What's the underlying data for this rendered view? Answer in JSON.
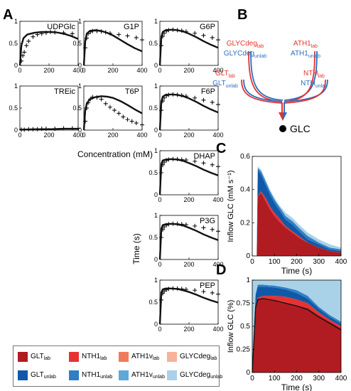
{
  "panel_letters": {
    "a": "A",
    "b": "B",
    "c": "C",
    "d": "D"
  },
  "common": {
    "xlabel": "Concentration (mM)",
    "ylabel": "Time (s)"
  },
  "colors": {
    "glt_lab": "#b01c22",
    "nth1_lab": "#e8322f",
    "ath1v_lab": "#f07b5b",
    "glycdeg_lab": "#f5b39a",
    "glt_unlab": "#1059a8",
    "nth1_unlab": "#2f7fc5",
    "ath1v_unlab": "#5ca9da",
    "glycdeg_unlab": "#a9d2e8",
    "path_red": "#e8322f",
    "path_blue": "#2a6fc0"
  },
  "diagram": {
    "labels": [
      {
        "main": "GLYCdeg",
        "sub": "lab",
        "color": "red"
      },
      {
        "main": "GLYCdeg",
        "sub": "unlab",
        "color": "blue"
      },
      {
        "main": "ATH1",
        "sub": "lab",
        "color": "red"
      },
      {
        "main": "ATH1",
        "sub": "unlab",
        "color": "blue"
      },
      {
        "main": "GLT",
        "sub": "lab",
        "color": "red"
      },
      {
        "main": "GLT",
        "sub": "unlab",
        "color": "blue"
      },
      {
        "main": "NTH",
        "sub": "lab",
        "color": "red"
      },
      {
        "main": "NTH",
        "sub": "unlab",
        "color": "blue"
      }
    ],
    "target": "GLC"
  },
  "legend": [
    {
      "main": "GLT",
      "sub": "lab",
      "color": "#b01c22"
    },
    {
      "main": "NTH1",
      "sub": "lab",
      "color": "#e8322f"
    },
    {
      "main": "ATH1v",
      "sub": "lab",
      "color": "#f07b5b"
    },
    {
      "main": "GLYCdeg",
      "sub": "lab",
      "color": "#f5b39a"
    },
    {
      "main": "GLT",
      "sub": "unlab",
      "color": "#1059a8"
    },
    {
      "main": "NTH1",
      "sub": "unlab",
      "color": "#2f7fc5"
    },
    {
      "main": "ATH1v",
      "sub": "unlab",
      "color": "#5ca9da"
    },
    {
      "main": "GLYCdeg",
      "sub": "unlab",
      "color": "#a9d2e8"
    }
  ],
  "chart_data": [
    {
      "type": "line",
      "title": "UDPGlc",
      "xlim": [
        0,
        400
      ],
      "ylim": [
        0,
        1
      ],
      "xticks": [
        0,
        200,
        400
      ],
      "yticks": [
        0,
        0.5,
        1
      ],
      "yticklabels": [
        "0",
        "0.5",
        "1"
      ],
      "model": {
        "x": [
          0,
          10,
          25,
          50,
          100,
          150,
          200,
          250,
          300,
          350,
          400
        ],
        "y": [
          0,
          0.45,
          0.62,
          0.7,
          0.74,
          0.76,
          0.76,
          0.75,
          0.72,
          0.67,
          0.6
        ]
      },
      "data": {
        "x": [
          10,
          20,
          30,
          45,
          60,
          90,
          120,
          150,
          180,
          210,
          240,
          300,
          360
        ],
        "y": [
          0.1,
          0.22,
          0.3,
          0.45,
          0.55,
          0.65,
          0.7,
          0.72,
          0.74,
          0.76,
          0.75,
          0.74,
          0.72
        ]
      }
    },
    {
      "type": "line",
      "title": "G1P",
      "xlim": [
        0,
        400
      ],
      "ylim": [
        0,
        1
      ],
      "xticks": [
        0,
        200,
        400
      ],
      "yticks": [
        0,
        0.5,
        1
      ],
      "yticklabels": [
        "0",
        "0.5",
        "1"
      ],
      "model": {
        "x": [
          0,
          10,
          20,
          40,
          80,
          120,
          160,
          200,
          250,
          300,
          350,
          400
        ],
        "y": [
          0,
          0.55,
          0.72,
          0.78,
          0.8,
          0.78,
          0.74,
          0.68,
          0.58,
          0.48,
          0.39,
          0.32
        ]
      },
      "data": {
        "x": [
          10,
          20,
          30,
          45,
          60,
          90,
          120,
          150,
          180,
          240,
          300,
          360,
          400
        ],
        "y": [
          0.4,
          0.62,
          0.72,
          0.76,
          0.78,
          0.78,
          0.77,
          0.75,
          0.73,
          0.7,
          0.67,
          0.63,
          0.58
        ]
      }
    },
    {
      "type": "line",
      "title": "G6P",
      "xlim": [
        0,
        400
      ],
      "ylim": [
        0,
        1
      ],
      "xticks": [
        0,
        200,
        400
      ],
      "yticks": [
        0,
        0.5,
        1
      ],
      "yticklabels": [
        "0",
        "0.5",
        "1"
      ],
      "model": {
        "x": [
          0,
          10,
          20,
          40,
          80,
          120,
          160,
          200,
          250,
          300,
          350,
          400
        ],
        "y": [
          0,
          0.65,
          0.76,
          0.8,
          0.81,
          0.8,
          0.77,
          0.72,
          0.64,
          0.55,
          0.47,
          0.4
        ]
      },
      "data": {
        "x": [
          10,
          20,
          30,
          45,
          60,
          90,
          120,
          150,
          180,
          240,
          300,
          360,
          400
        ],
        "y": [
          0.45,
          0.66,
          0.73,
          0.78,
          0.8,
          0.81,
          0.8,
          0.79,
          0.77,
          0.73,
          0.68,
          0.63,
          0.58
        ]
      }
    },
    {
      "type": "line",
      "title": "TREic",
      "xlim": [
        0,
        400
      ],
      "ylim": [
        0,
        1
      ],
      "xticks": [
        0,
        200,
        400
      ],
      "yticks": [
        0,
        0.5,
        1
      ],
      "yticklabels": [
        "0",
        "0.5",
        "1"
      ],
      "model": {
        "x": [
          0,
          100,
          200,
          300,
          400
        ],
        "y": [
          0.01,
          0.02,
          0.02,
          0.03,
          0.03
        ]
      },
      "data": {
        "x": [
          10,
          30,
          60,
          90,
          120,
          150,
          180,
          240,
          300,
          360,
          400
        ],
        "y": [
          0.01,
          0.01,
          0.02,
          0.02,
          0.02,
          0.03,
          0.03,
          0.03,
          0.04,
          0.04,
          0.04
        ]
      }
    },
    {
      "type": "line",
      "title": "T6P",
      "xlim": [
        0,
        400
      ],
      "ylim": [
        0,
        1
      ],
      "xticks": [
        0,
        200,
        400
      ],
      "yticks": [
        0,
        0.5,
        1
      ],
      "yticklabels": [
        "0",
        "0.5",
        "1"
      ],
      "model": {
        "x": [
          0,
          10,
          20,
          40,
          80,
          120,
          160,
          200,
          250,
          300,
          350,
          400
        ],
        "y": [
          0,
          0.45,
          0.6,
          0.7,
          0.75,
          0.77,
          0.76,
          0.73,
          0.66,
          0.57,
          0.47,
          0.38
        ]
      },
      "data": {
        "x": [
          10,
          20,
          30,
          45,
          60,
          90,
          120,
          150,
          180,
          210,
          240,
          270,
          300,
          330,
          360,
          400
        ],
        "y": [
          0.2,
          0.5,
          0.62,
          0.7,
          0.75,
          0.74,
          0.7,
          0.6,
          0.52,
          0.45,
          0.38,
          0.3,
          0.24,
          0.2,
          0.16,
          0.12
        ]
      }
    },
    {
      "type": "line",
      "title": "F6P",
      "xlim": [
        0,
        400
      ],
      "ylim": [
        0,
        1
      ],
      "xticks": [
        0,
        200,
        400
      ],
      "yticks": [
        0,
        0.5,
        1
      ],
      "yticklabels": [
        "0",
        "0.5",
        "1"
      ],
      "model": {
        "x": [
          0,
          10,
          20,
          40,
          80,
          120,
          160,
          200,
          250,
          300,
          350,
          400
        ],
        "y": [
          0,
          0.65,
          0.76,
          0.8,
          0.81,
          0.8,
          0.77,
          0.72,
          0.64,
          0.55,
          0.47,
          0.4
        ]
      },
      "data": {
        "x": [
          10,
          20,
          30,
          45,
          60,
          90,
          120,
          150,
          180,
          240,
          300,
          360,
          400
        ],
        "y": [
          0.45,
          0.66,
          0.73,
          0.78,
          0.8,
          0.81,
          0.8,
          0.79,
          0.77,
          0.73,
          0.68,
          0.63,
          0.58
        ]
      }
    },
    {
      "type": "line",
      "title": "DHAP",
      "xlim": [
        0,
        400
      ],
      "ylim": [
        0,
        1
      ],
      "xticks": [
        0,
        200,
        400
      ],
      "yticks": [
        0,
        0.5,
        1
      ],
      "yticklabels": [
        "0",
        "0.5",
        "1"
      ],
      "model": {
        "x": [
          0,
          10,
          20,
          40,
          80,
          120,
          160,
          200,
          250,
          300,
          350,
          400
        ],
        "y": [
          0,
          0.7,
          0.78,
          0.8,
          0.81,
          0.8,
          0.77,
          0.72,
          0.65,
          0.57,
          0.5,
          0.44
        ]
      },
      "data": {
        "x": [
          10,
          20,
          30,
          45,
          60,
          90,
          120,
          150,
          180,
          240,
          300,
          360,
          400
        ],
        "y": [
          0.5,
          0.68,
          0.74,
          0.78,
          0.8,
          0.81,
          0.81,
          0.8,
          0.79,
          0.76,
          0.72,
          0.68,
          0.64
        ]
      }
    },
    {
      "type": "line",
      "title": "P3G",
      "xlim": [
        0,
        400
      ],
      "ylim": [
        0,
        1
      ],
      "xticks": [
        0,
        200,
        400
      ],
      "yticks": [
        0,
        0.5,
        1
      ],
      "yticklabels": [
        "0",
        "0.5",
        "1"
      ],
      "model": {
        "x": [
          0,
          10,
          20,
          40,
          80,
          120,
          160,
          200,
          250,
          300,
          350,
          400
        ],
        "y": [
          0,
          0.7,
          0.78,
          0.8,
          0.81,
          0.8,
          0.77,
          0.72,
          0.65,
          0.57,
          0.5,
          0.44
        ]
      },
      "data": {
        "x": [
          10,
          20,
          30,
          45,
          60,
          90,
          120,
          150,
          180,
          240,
          300,
          360,
          400
        ],
        "y": [
          0.5,
          0.68,
          0.74,
          0.78,
          0.8,
          0.81,
          0.81,
          0.8,
          0.79,
          0.76,
          0.72,
          0.68,
          0.64
        ]
      }
    },
    {
      "type": "line",
      "title": "PEP",
      "xlim": [
        0,
        400
      ],
      "ylim": [
        0,
        1
      ],
      "xticks": [
        0,
        200,
        400
      ],
      "yticks": [
        0,
        0.5,
        1
      ],
      "yticklabels": [
        "0",
        "0.5",
        "1"
      ],
      "model": {
        "x": [
          0,
          10,
          20,
          40,
          80,
          120,
          160,
          200,
          250,
          300,
          350,
          400
        ],
        "y": [
          0,
          0.72,
          0.79,
          0.81,
          0.81,
          0.8,
          0.77,
          0.73,
          0.67,
          0.6,
          0.54,
          0.49
        ]
      },
      "data": {
        "x": [
          10,
          20,
          30,
          45,
          60,
          90,
          120,
          150,
          180,
          240,
          300,
          360,
          400
        ],
        "y": [
          0.55,
          0.7,
          0.75,
          0.78,
          0.8,
          0.81,
          0.81,
          0.8,
          0.79,
          0.77,
          0.74,
          0.71,
          0.68
        ]
      }
    },
    {
      "type": "area",
      "title": "",
      "xlabel": "Time (s)",
      "ylabel": "Inflow GLC (mM s⁻¹)",
      "xlim": [
        0,
        400
      ],
      "ylim": [
        0,
        0.6
      ],
      "xticks": [
        0,
        100,
        200,
        300,
        400
      ],
      "yticks": [
        0,
        0.2,
        0.4,
        0.6
      ],
      "yticklabels": [
        "0",
        "0.2",
        "0.4",
        "0.6"
      ],
      "x": [
        20,
        25,
        40,
        60,
        80,
        100,
        120,
        150,
        180,
        210,
        250,
        300,
        350,
        400
      ],
      "series": [
        {
          "name": "GLT lab",
          "values": [
            0,
            0.36,
            0.38,
            0.33,
            0.28,
            0.24,
            0.21,
            0.17,
            0.14,
            0.11,
            0.08,
            0.05,
            0.03,
            0.02
          ]
        },
        {
          "name": "NTH1 lab",
          "values": [
            0,
            0.0,
            0.01,
            0.02,
            0.02,
            0.02,
            0.02,
            0.01,
            0.01,
            0.01,
            0.0,
            0.0,
            0.0,
            0.0
          ]
        },
        {
          "name": "GLT unlab",
          "values": [
            0,
            0.16,
            0.1,
            0.08,
            0.07,
            0.06,
            0.05,
            0.04,
            0.04,
            0.03,
            0.02,
            0.02,
            0.01,
            0.01
          ]
        },
        {
          "name": "NTH1 unlab",
          "values": [
            0,
            0.01,
            0.02,
            0.02,
            0.02,
            0.02,
            0.02,
            0.02,
            0.02,
            0.02,
            0.02,
            0.01,
            0.01,
            0.01
          ]
        },
        {
          "name": "GLYCdeg unlab",
          "values": [
            0,
            0.01,
            0.01,
            0.01,
            0.01,
            0.01,
            0.01,
            0.02,
            0.02,
            0.02,
            0.02,
            0.02,
            0.02,
            0.01
          ]
        }
      ]
    },
    {
      "type": "area",
      "title": "",
      "xlabel": "Time (s)",
      "ylabel": "Inflow GLC (%)",
      "xlim": [
        0,
        400
      ],
      "ylim": [
        0,
        1
      ],
      "xticks": [
        0,
        100,
        200,
        300,
        400
      ],
      "yticks": [
        0,
        0.25,
        0.5,
        0.75,
        1
      ],
      "yticklabels": [
        "0",
        "0.25",
        "0.5",
        "0.75",
        "1"
      ],
      "x": [
        0,
        15,
        25,
        50,
        100,
        150,
        200,
        250,
        300,
        350,
        400
      ],
      "series": [
        {
          "name": "GLT lab",
          "values": [
            0,
            0.7,
            0.79,
            0.8,
            0.78,
            0.76,
            0.73,
            0.7,
            0.62,
            0.55,
            0.48
          ]
        },
        {
          "name": "NTH1 lab",
          "values": [
            0,
            0.02,
            0.02,
            0.03,
            0.05,
            0.06,
            0.06,
            0.05,
            0.03,
            0.02,
            0.02
          ]
        },
        {
          "name": "GLT unlab",
          "values": [
            0,
            0.12,
            0.12,
            0.1,
            0.09,
            0.08,
            0.07,
            0.05,
            0.04,
            0.03,
            0.03
          ]
        },
        {
          "name": "NTH1 unlab",
          "values": [
            0,
            0.01,
            0.02,
            0.02,
            0.02,
            0.02,
            0.03,
            0.03,
            0.02,
            0.02,
            0.02
          ]
        },
        {
          "name": "GLYCdeg unlab",
          "values": [
            1,
            0.15,
            0.05,
            0.05,
            0.06,
            0.08,
            0.11,
            0.17,
            0.29,
            0.38,
            0.45
          ]
        }
      ],
      "overlay_line": {
        "x": [
          0,
          15,
          25,
          50,
          100,
          150,
          200,
          250,
          300,
          350,
          400
        ],
        "y": [
          0,
          0.7,
          0.79,
          0.8,
          0.78,
          0.75,
          0.72,
          0.68,
          0.6,
          0.53,
          0.46
        ]
      }
    }
  ]
}
